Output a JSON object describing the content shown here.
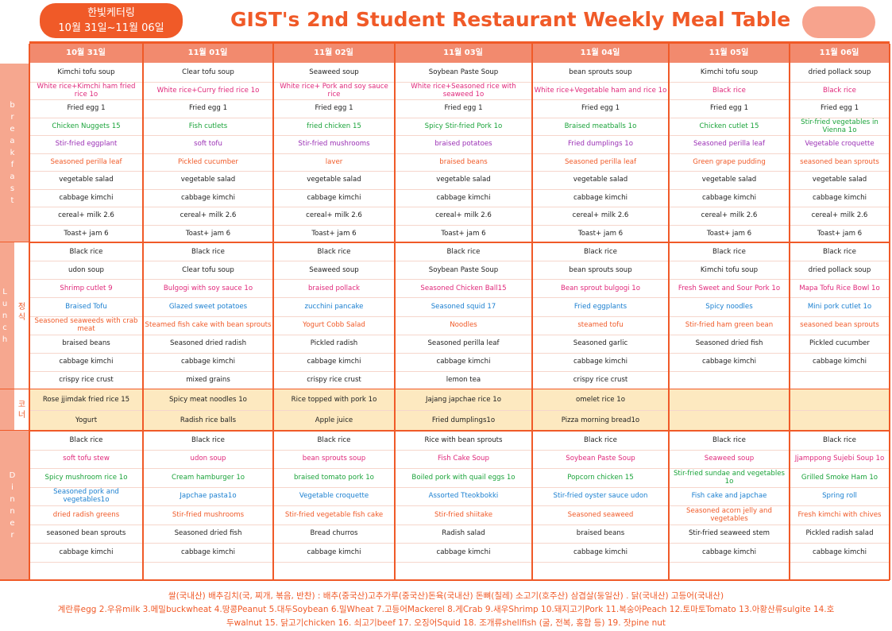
{
  "header": {
    "badge_line1": "한빛케터링",
    "badge_line2": "10월 31일~11월 06일",
    "title": "GIST's 2nd Student Restaurant Weekly Meal Table"
  },
  "days": [
    "10월 31일",
    "11월 01일",
    "11월 02일",
    "11월 03일",
    "11월 04일",
    "11월 05일",
    "11월 06일"
  ],
  "sections": [
    {
      "label": "breakfast",
      "row_colors": [
        "#222",
        "#e0287a",
        "#222",
        "#1aa33a",
        "#9b30b5",
        "#f05a28",
        "#222",
        "#222",
        "#222",
        "#222"
      ],
      "rows": [
        [
          "Kimchi tofu soup",
          "Clear tofu soup",
          "Seaweed soup",
          "Soybean Paste Soup",
          "bean sprouts soup",
          "Kimchi tofu soup",
          "dried pollack soup"
        ],
        [
          "White rice+Kimchi ham fried rice 1o",
          "White rice+Curry fried rice 1o",
          "White rice+ Pork and soy sauce rice",
          "White rice+Seasoned rice with seaweed 1o",
          "White rice+Vegetable ham and rice 1o",
          "Black rice",
          "Black rice"
        ],
        [
          "Fried egg 1",
          "Fried egg 1",
          "Fried egg 1",
          "Fried egg 1",
          "Fried egg 1",
          "Fried egg 1",
          "Fried egg 1"
        ],
        [
          "Chicken Nuggets 15",
          "Fish cutlets",
          "fried chicken 15",
          "Spicy Stir-fried Pork 1o",
          "Braised meatballs 1o",
          "Chicken cutlet 15",
          "Stir-fried vegetables in Vienna 1o"
        ],
        [
          "Stir-fried eggplant",
          "soft tofu",
          "Stir-fried mushrooms",
          "braised potatoes",
          "Fried dumplings 1o",
          "Seasoned perilla leaf",
          "Vegetable croquette"
        ],
        [
          "Seasoned perilla leaf",
          "Pickled cucumber",
          "laver",
          "braised beans",
          "Seasoned perilla leaf",
          "Green grape pudding",
          "seasoned bean sprouts"
        ],
        [
          "vegetable salad",
          "vegetable salad",
          "vegetable salad",
          "vegetable salad",
          "vegetable salad",
          "vegetable salad",
          "vegetable salad"
        ],
        [
          "cabbage kimchi",
          "cabbage kimchi",
          "cabbage kimchi",
          "cabbage kimchi",
          "cabbage kimchi",
          "cabbage kimchi",
          "cabbage kimchi"
        ],
        [
          "cereal+ milk 2.6",
          "cereal+ milk 2.6",
          "cereal+ milk 2.6",
          "cereal+ milk 2.6",
          "cereal+ milk 2.6",
          "cereal+ milk 2.6",
          "cereal+ milk 2.6"
        ],
        [
          "Toast+ jam 6",
          "Toast+ jam 6",
          "Toast+ jam 6",
          "Toast+ jam 6",
          "Toast+ jam 6",
          "Toast+ jam 6",
          "Toast+ jam 6"
        ]
      ]
    },
    {
      "label": "Lunch",
      "sub_label": "정식",
      "row_colors": [
        "#222",
        "#222",
        "#e0287a",
        "#1a7fd0",
        "#f05a28",
        "#222",
        "#222",
        "#222"
      ],
      "rows": [
        [
          "Black rice",
          "Black rice",
          "Black rice",
          "Black rice",
          "Black rice",
          "Black rice",
          "Black rice"
        ],
        [
          "udon soup",
          "Clear tofu soup",
          "Seaweed soup",
          "Soybean Paste Soup",
          "bean sprouts soup",
          "Kimchi tofu soup",
          "dried pollack soup"
        ],
        [
          "Shrimp cutlet 9",
          "Bulgogi with soy sauce 1o",
          "braised pollack",
          "Seasoned Chicken Ball15",
          "Bean sprout bulgogi 1o",
          "Fresh Sweet and Sour Pork 1o",
          "Mapa Tofu Rice Bowl 1o"
        ],
        [
          "Braised Tofu",
          "Glazed sweet potatoes",
          "zucchini pancake",
          "Seasoned squid 17",
          "Fried eggplants",
          "Spicy noodles",
          "Mini pork cutlet 1o"
        ],
        [
          "Seasoned seaweeds with crab meat",
          "Steamed fish cake with bean sprouts",
          "Yogurt Cobb Salad",
          "Noodles",
          "steamed tofu",
          "Stir-fried ham green bean",
          "seasoned bean sprouts"
        ],
        [
          "braised beans",
          "Seasoned dried radish",
          "Pickled radish",
          "Seasoned perilla leaf",
          "Seasoned garlic",
          "Seasoned dried fish",
          "Pickled cucumber"
        ],
        [
          "cabbage kimchi",
          "cabbage kimchi",
          "cabbage kimchi",
          "cabbage kimchi",
          "cabbage kimchi",
          "cabbage kimchi",
          "cabbage kimchi"
        ],
        [
          "crispy rice crust",
          "mixed grains",
          "crispy rice crust",
          "lemon tea",
          "crispy rice crust",
          null,
          null
        ]
      ]
    },
    {
      "sub_label": "코너",
      "row_colors": [
        "#222",
        "#222"
      ],
      "rows": [
        [
          "Rose jjimdak fried rice 15",
          "Spicy meat  noodles 1o",
          "Rice topped with pork 1o",
          "Jajang japchae rice 1o",
          "omelet rice 1o",
          null,
          null
        ],
        [
          "Yogurt",
          "Radish rice balls",
          "Apple juice",
          "Fried dumplings1o",
          "Pizza morning bread1o",
          null,
          null
        ]
      ]
    },
    {
      "label": "Dinner",
      "row_colors": [
        "#222",
        "#e0287a",
        "#1aa33a",
        "#1a7fd0",
        "#f05a28",
        "#222",
        "#222",
        "#222"
      ],
      "rows": [
        [
          "Black rice",
          "Black rice",
          "Black rice",
          "Rice with bean sprouts",
          "Black rice",
          "Black rice",
          "Black rice"
        ],
        [
          "soft tofu stew",
          "udon soup",
          "bean sprouts soup",
          "Fish Cake Soup",
          "Soybean Paste Soup",
          "Seaweed soup",
          "Jjamppong Sujebi Soup 1o"
        ],
        [
          "Spicy mushroom rice 1o",
          "Cream hamburger 1o",
          "braised tomato pork 1o",
          "Boiled pork with quail eggs 1o",
          "Popcorn chicken 15",
          "Stir-fried sundae and vegetables 1o",
          "Grilled Smoke Ham 1o"
        ],
        [
          "Seasoned pork and vegetables1o",
          "Japchae pasta1o",
          "Vegetable croquette",
          "Assorted Tteokbokki",
          "Stir-fried oyster sauce udon",
          "Fish cake and japchae",
          "Spring roll"
        ],
        [
          "dried radish greens",
          "Stir-fried mushrooms",
          "Stir-fried vegetable fish cake",
          "Stir-fried shiitake",
          "Seasoned seaweed",
          "Seasoned acorn jelly and vegetables",
          "Fresh kimchi with chives"
        ],
        [
          "seasoned bean sprouts",
          "Seasoned dried fish",
          "Bread churros",
          "Radish salad",
          "braised beans",
          "Stir-fried seaweed stem",
          "Pickled radish salad"
        ],
        [
          "cabbage kimchi",
          "cabbage kimchi",
          "cabbage kimchi",
          "cabbage kimchi",
          "cabbage kimchi",
          "cabbage kimchi",
          "cabbage kimchi"
        ],
        [
          null,
          null,
          null,
          null,
          null,
          null,
          null
        ]
      ]
    }
  ],
  "footer": [
    "쌀(국내산) 배추김치(국, 찌개, 볶음, 반찬) : 배추(중국산)고추가루(중국산)돈육(국내산) 돈뼈(칠레) 소고기(호주산) 삼겹살(둥일산) . 닭(국내산) 고등어(국내산)",
    "계란류egg 2.우유milk 3.메밀buckwheat 4.땅콩Peanut 5.대두Soybean 6.밀Wheat 7.고등어Mackerel 8.게Crab 9.새우Shrimp 10.돼지고기Pork 11.복숭아Peach 12.토마토Tomato 13.아황산류sulgite 14.호",
    "두walnut 15. 닭고기chicken 16. 쇠고기beef 17. 오징어Squid 18. 조개류shellfish (굴, 전복, 홍합 등) 19. 잣pine nut"
  ]
}
